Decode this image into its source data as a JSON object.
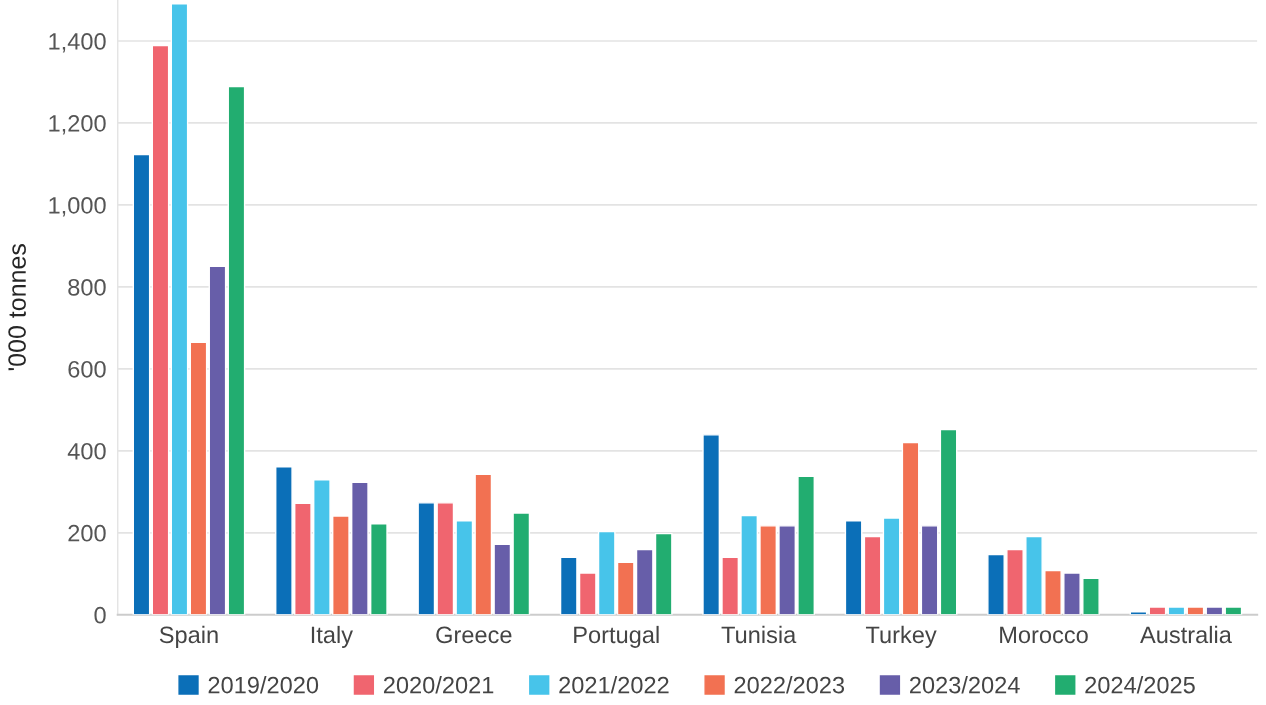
{
  "chart_data": {
    "type": "bar",
    "ylabel": "'000 tonnes",
    "categories": [
      "Spain",
      "Italy",
      "Greece",
      "Portugal",
      "Tunisia",
      "Turkey",
      "Morocco",
      "Australia"
    ],
    "series": [
      {
        "name": "2019/2020",
        "color": "#0b6fb8",
        "values": [
          1123,
          361,
          273,
          140,
          439,
          229,
          147,
          7
        ]
      },
      {
        "name": "2020/2021",
        "color": "#f0656f",
        "values": [
          1389,
          272,
          273,
          102,
          140,
          191,
          159,
          19
        ]
      },
      {
        "name": "2021/2022",
        "color": "#47c4ea",
        "values": [
          1491,
          329,
          229,
          203,
          242,
          236,
          191,
          19
        ]
      },
      {
        "name": "2022/2023",
        "color": "#f27152",
        "values": [
          665,
          241,
          343,
          128,
          217,
          420,
          108,
          19
        ]
      },
      {
        "name": "2023/2024",
        "color": "#675ea9",
        "values": [
          850,
          323,
          172,
          159,
          217,
          217,
          102,
          19
        ]
      },
      {
        "name": "2024/2025",
        "color": "#22ad70",
        "values": [
          1289,
          222,
          248,
          198,
          338,
          452,
          89,
          19
        ]
      }
    ],
    "ylim": [
      0,
      1500
    ],
    "yticks": [
      0,
      {
        "value": 200,
        "label": "200"
      },
      {
        "value": 400,
        "label": "400"
      },
      {
        "value": 600,
        "label": "600"
      },
      {
        "value": 800,
        "label": "800"
      },
      {
        "value": 1000,
        "label": "1,000"
      },
      {
        "value": 1200,
        "label": "1,200"
      },
      {
        "value": 1400,
        "label": "1,400"
      }
    ],
    "grid": "y",
    "legend": "bottom"
  }
}
